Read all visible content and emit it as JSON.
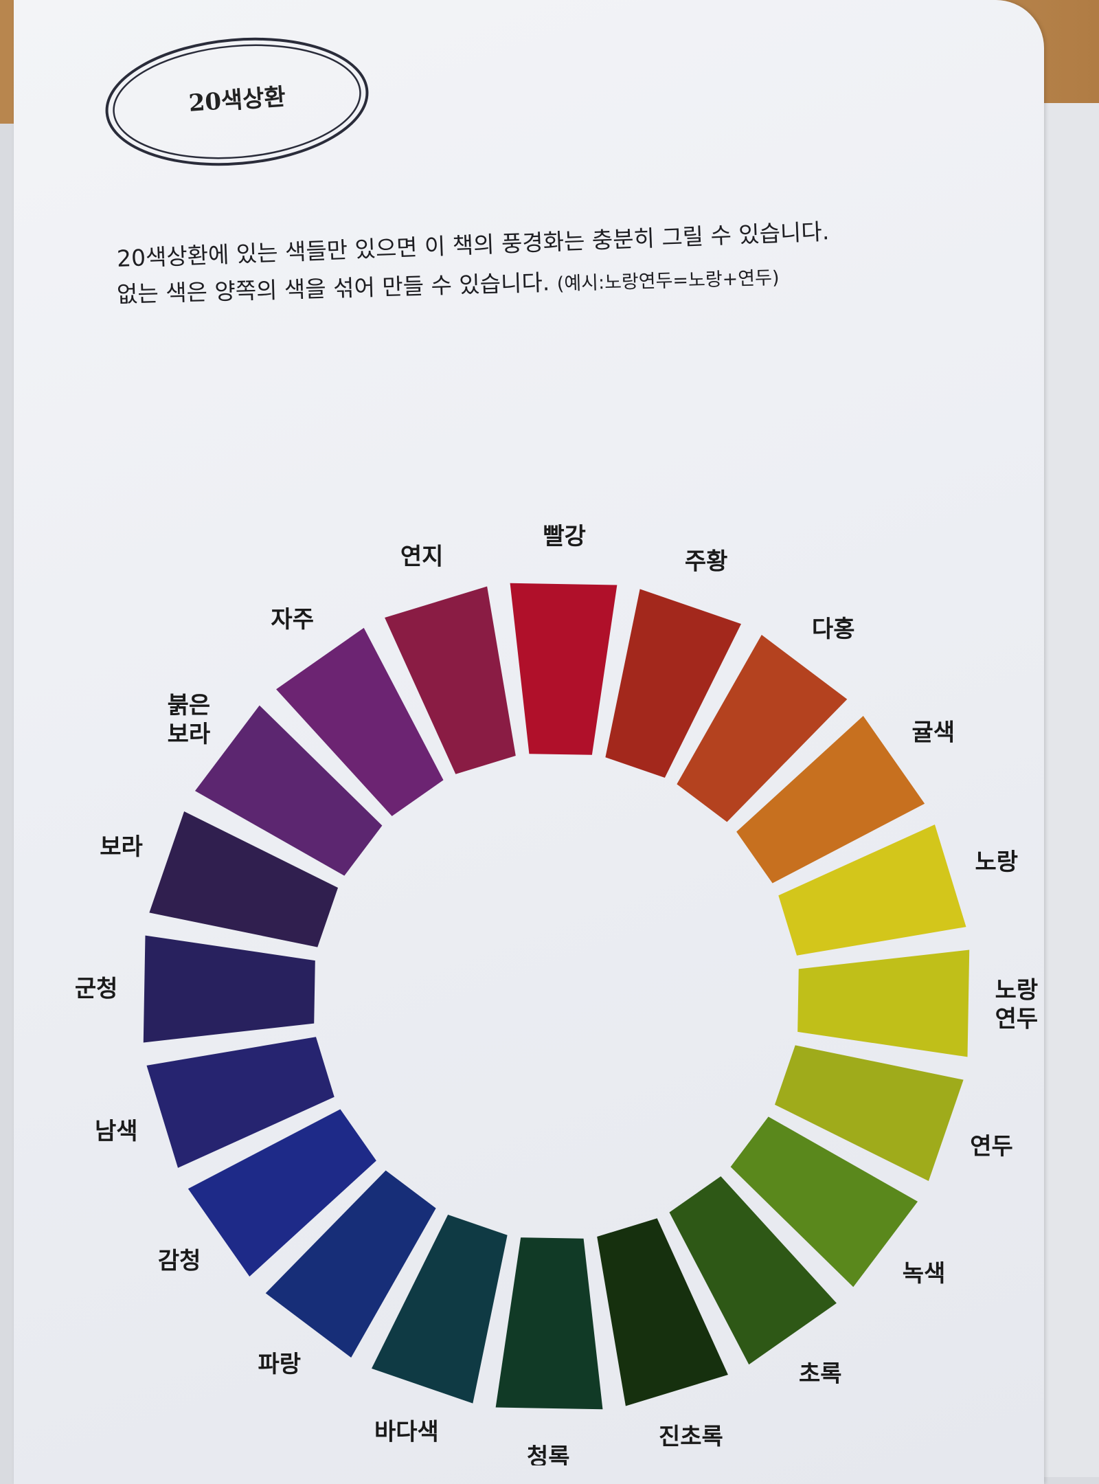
{
  "title": "20색상환",
  "text": {
    "line1": "20색상환에 있는 색들만 있으면 이 책의 풍경화는 충분히 그릴 수 있습니다.",
    "line2": "없는 색은 양쪽의 색을 섞어 만들 수 있습니다.",
    "line2_example": "(예시:노랑연두=노랑+연두)"
  },
  "color_wheel": [
    {
      "label": "빨강",
      "color": "#b0102a"
    },
    {
      "label": "주황",
      "color": "#a3281c"
    },
    {
      "label": "다홍",
      "color": "#b4421f"
    },
    {
      "label": "귤색",
      "color": "#c7701f"
    },
    {
      "label": "노랑",
      "color": "#d3c61b"
    },
    {
      "label": "노랑 연두",
      "color": "#c0bf19"
    },
    {
      "label": "연두",
      "color": "#9fab1b"
    },
    {
      "label": "녹색",
      "color": "#5a881c"
    },
    {
      "label": "초록",
      "color": "#2e5816"
    },
    {
      "label": "진초록",
      "color": "#16300e"
    },
    {
      "label": "청록",
      "color": "#113a26"
    },
    {
      "label": "바다색",
      "color": "#0f3a44"
    },
    {
      "label": "파랑",
      "color": "#172e78"
    },
    {
      "label": "감청",
      "color": "#1e2a88"
    },
    {
      "label": "남색",
      "color": "#262470"
    },
    {
      "label": "군청",
      "color": "#28215e"
    },
    {
      "label": "보라",
      "color": "#301f4f"
    },
    {
      "label": "붉은 보라",
      "color": "#5c2670"
    },
    {
      "label": "자주",
      "color": "#6c2472"
    },
    {
      "label": "연지",
      "color": "#8a1c44"
    }
  ]
}
